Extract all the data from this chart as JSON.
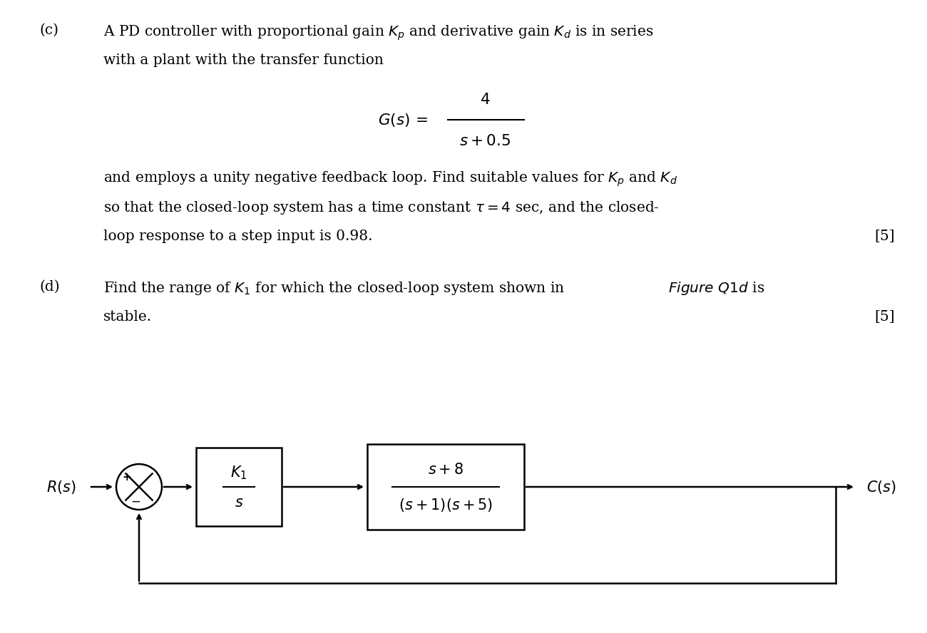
{
  "bg_color": "#ffffff",
  "text_color": "#000000",
  "part_c_label": "(c)",
  "part_c_line1": "A PD controller with proportional gain $K_p$ and derivative gain $K_d$ is in series",
  "part_c_line2": "with a plant with the transfer function",
  "transfer_func_G": "$G(s) = \\dfrac{4}{s + 0.5}$",
  "part_c_line3": "and employs a unity negative feedback loop. Find suitable values for $K_p$ and $K_d$",
  "part_c_line4": "so that the closed-loop system has a time constant $\\tau = 4$ sec, and the closed-",
  "part_c_line5": "loop response to a step input is 0.98.",
  "part_c_mark": "[5]",
  "part_d_label": "(d)",
  "part_d_line1": "Find the range of $K_1$ for which the closed-loop system shown in \\textbf{\\textit{Figure Q1d}} is",
  "part_d_line2": "stable.",
  "part_d_mark": "[5]",
  "diagram_Rs": "$R(s)$",
  "diagram_Cs": "$C(s)$",
  "diagram_K1_over_s": "$\\dfrac{K_1}{s}$",
  "diagram_plant": "$\\dfrac{s+8}{(s+1)(s+5)}$",
  "font_size_body": 14.5,
  "font_size_label": 14.5,
  "font_size_diagram": 14
}
